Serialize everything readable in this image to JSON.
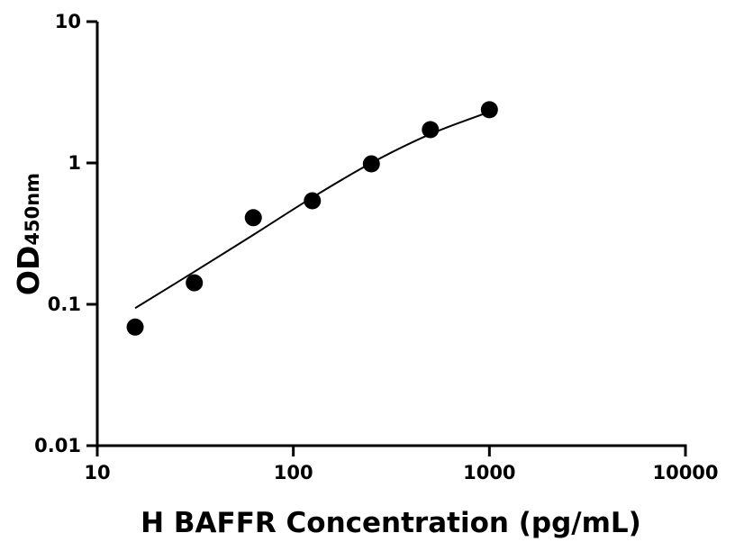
{
  "chart_data": {
    "type": "scatter",
    "title": "",
    "xlabel": "H BAFFR Concentration (pg/mL)",
    "ylabel": "OD",
    "ylabel_subscript": "450nm",
    "xscale": "log",
    "yscale": "log",
    "xlim": [
      10,
      10000
    ],
    "ylim": [
      0.01,
      10
    ],
    "xticks": [
      "10",
      "100",
      "1000",
      "10000"
    ],
    "yticks": [
      "0.01",
      "0.1",
      "1",
      "10"
    ],
    "grid": false,
    "series": [
      {
        "type": "scatter",
        "x": [
          15.6,
          31.25,
          62.5,
          125,
          250,
          500,
          1000
        ],
        "y": [
          0.069,
          0.142,
          0.41,
          0.54,
          0.985,
          1.72,
          2.38
        ]
      },
      {
        "type": "line",
        "x": [
          15.6,
          31.25,
          62.5,
          125,
          250,
          500,
          1000
        ],
        "y": [
          0.094,
          0.17,
          0.31,
          0.57,
          1.0,
          1.6,
          2.3
        ]
      }
    ],
    "colors": {
      "points": "#000000",
      "line": "#000000"
    }
  }
}
